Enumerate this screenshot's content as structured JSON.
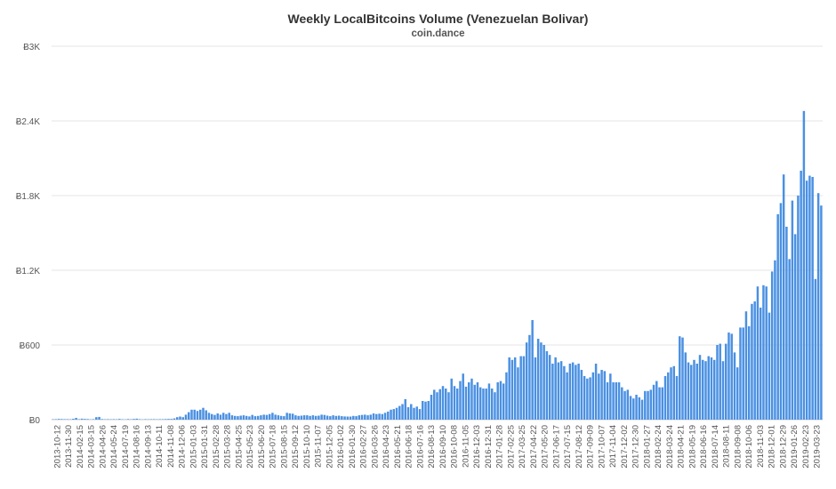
{
  "chart_data": {
    "type": "bar",
    "title": "Weekly LocalBitcoins Volume (Venezuelan Bolivar)",
    "subtitle": "coin.dance",
    "y_currency_symbol": "Ƀ",
    "yticks": [
      0,
      600,
      1200,
      1800,
      2400,
      3000
    ],
    "ytick_labels": [
      "Ƀ0",
      "Ƀ600",
      "Ƀ1.2K",
      "Ƀ1.8K",
      "Ƀ2.4K",
      "Ƀ3K"
    ],
    "ylim": [
      0,
      3000
    ],
    "grid": true,
    "legend": false,
    "bar_color": "#4a90e2",
    "highlight_color": "#cccccc",
    "highlight_week_index": 279,
    "start_week": "2013-10-12",
    "xtick_labels": [
      "2013-10-12",
      "2013-11-30",
      "2014-02-15",
      "2014-03-15",
      "2014-04-26",
      "2014-05-24",
      "2014-07-19",
      "2014-08-16",
      "2014-09-13",
      "2014-10-11",
      "2014-11-08",
      "2014-12-06",
      "2015-01-03",
      "2015-01-31",
      "2015-02-28",
      "2015-03-28",
      "2015-04-25",
      "2015-05-23",
      "2015-06-20",
      "2015-07-18",
      "2015-08-15",
      "2015-09-12",
      "2015-10-10",
      "2015-11-07",
      "2015-12-05",
      "2016-01-02",
      "2016-01-30",
      "2016-02-27",
      "2016-03-26",
      "2016-04-23",
      "2016-05-21",
      "2016-06-18",
      "2016-07-16",
      "2016-08-13",
      "2016-09-10",
      "2016-10-08",
      "2016-11-05",
      "2016-12-03",
      "2016-12-31",
      "2017-01-28",
      "2017-02-25",
      "2017-03-25",
      "2017-04-22",
      "2017-05-20",
      "2017-06-17",
      "2017-07-15",
      "2017-08-12",
      "2017-09-09",
      "2017-10-07",
      "2017-11-04",
      "2017-12-02",
      "2017-12-30",
      "2018-01-27",
      "2018-02-24",
      "2018-03-24",
      "2018-04-21",
      "2018-05-19",
      "2018-06-16",
      "2018-07-14",
      "2018-08-11",
      "2018-09-08",
      "2018-10-06",
      "2018-11-03",
      "2018-12-01",
      "2018-12-29",
      "2019-01-26",
      "2019-02-23",
      "2019-03-23"
    ],
    "values": [
      3,
      4,
      6,
      5,
      4,
      4,
      3,
      7,
      14,
      4,
      8,
      6,
      5,
      2,
      4,
      20,
      22,
      5,
      3,
      4,
      3,
      4,
      3,
      6,
      3,
      2,
      5,
      3,
      6,
      8,
      4,
      2,
      4,
      3,
      4,
      4,
      3,
      4,
      4,
      5,
      6,
      6,
      10,
      20,
      25,
      20,
      40,
      60,
      80,
      80,
      70,
      80,
      95,
      75,
      55,
      45,
      38,
      50,
      40,
      55,
      45,
      55,
      35,
      30,
      28,
      32,
      35,
      30,
      26,
      38,
      28,
      30,
      35,
      40,
      38,
      45,
      55,
      40,
      35,
      30,
      28,
      55,
      50,
      48,
      35,
      30,
      32,
      35,
      35,
      30,
      35,
      30,
      32,
      40,
      38,
      32,
      28,
      35,
      30,
      32,
      28,
      26,
      25,
      25,
      30,
      28,
      35,
      38,
      40,
      35,
      40,
      50,
      45,
      48,
      45,
      55,
      65,
      80,
      85,
      95,
      110,
      125,
      165,
      100,
      125,
      95,
      105,
      85,
      150,
      145,
      150,
      200,
      240,
      220,
      245,
      270,
      250,
      220,
      330,
      270,
      250,
      310,
      370,
      265,
      300,
      330,
      280,
      300,
      260,
      250,
      250,
      290,
      250,
      220,
      300,
      310,
      290,
      380,
      500,
      480,
      500,
      420,
      510,
      510,
      620,
      680,
      800,
      500,
      650,
      620,
      600,
      550,
      520,
      450,
      500,
      460,
      470,
      430,
      380,
      450,
      460,
      440,
      450,
      400,
      350,
      330,
      340,
      380,
      450,
      370,
      400,
      390,
      300,
      370,
      300,
      300,
      300,
      260,
      230,
      240,
      190,
      170,
      200,
      180,
      160,
      230,
      230,
      240,
      280,
      310,
      260,
      260,
      350,
      380,
      420,
      430,
      350,
      670,
      660,
      540,
      460,
      440,
      480,
      450,
      520,
      480,
      470,
      510,
      500,
      480,
      600,
      610,
      470,
      610,
      700,
      690,
      540,
      420,
      740,
      740,
      870,
      750,
      930,
      950,
      1070,
      900,
      1080,
      1070,
      860,
      1190,
      1280,
      1650,
      1740,
      1970,
      1550,
      1290,
      1760,
      1490,
      1800,
      2000,
      2480,
      1920,
      1960,
      1950,
      1130,
      1820,
      1720
    ]
  }
}
